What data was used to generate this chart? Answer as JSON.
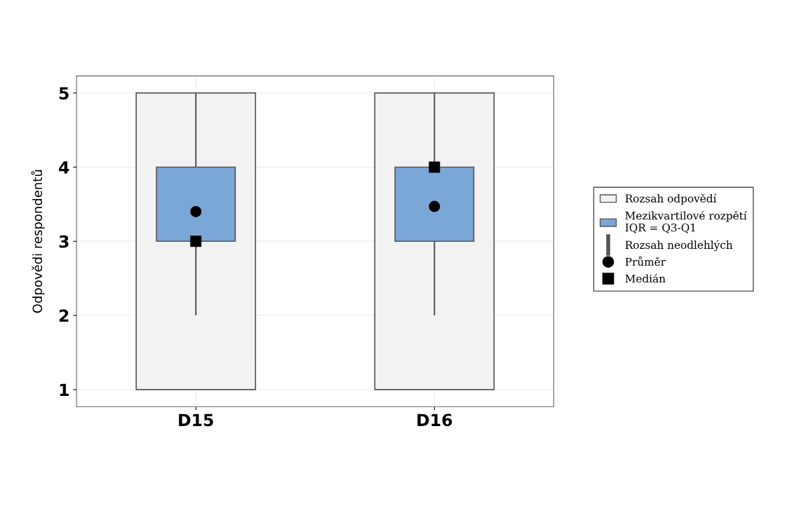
{
  "chart_data": {
    "type": "bar",
    "ylabel": "Odpovědi respondentů",
    "categories": [
      "D15",
      "D16"
    ],
    "series": [
      {
        "name": "Rozsah odpovědí",
        "color": "#f2f2f2",
        "base": [
          1,
          1
        ],
        "values": [
          4,
          4
        ]
      },
      {
        "name": "Mezikvartilové rozpětí\nIQR = Q3-Q1",
        "color": "#7ba7d7",
        "base": [
          3,
          3
        ],
        "values": [
          1,
          1
        ]
      },
      {
        "name": "Rozsah neodlehlých",
        "color": "#555555",
        "base": [
          2,
          2
        ],
        "values": [
          3,
          3
        ]
      },
      {
        "type": "scatter",
        "name": "Průměr",
        "color": "#000000",
        "marker": "circle",
        "x": [
          "D15",
          "D16"
        ],
        "values": [
          3.4,
          3.47
        ]
      },
      {
        "type": "scatter",
        "name": "Medián",
        "color": "#000000",
        "marker": "square",
        "x": [
          "D15",
          "D16"
        ],
        "values": [
          3,
          4
        ]
      }
    ],
    "ylim": [
      0.77,
      5.23
    ],
    "yticks": [
      1,
      2,
      3,
      4,
      5
    ],
    "grid": true,
    "legend": "right"
  }
}
